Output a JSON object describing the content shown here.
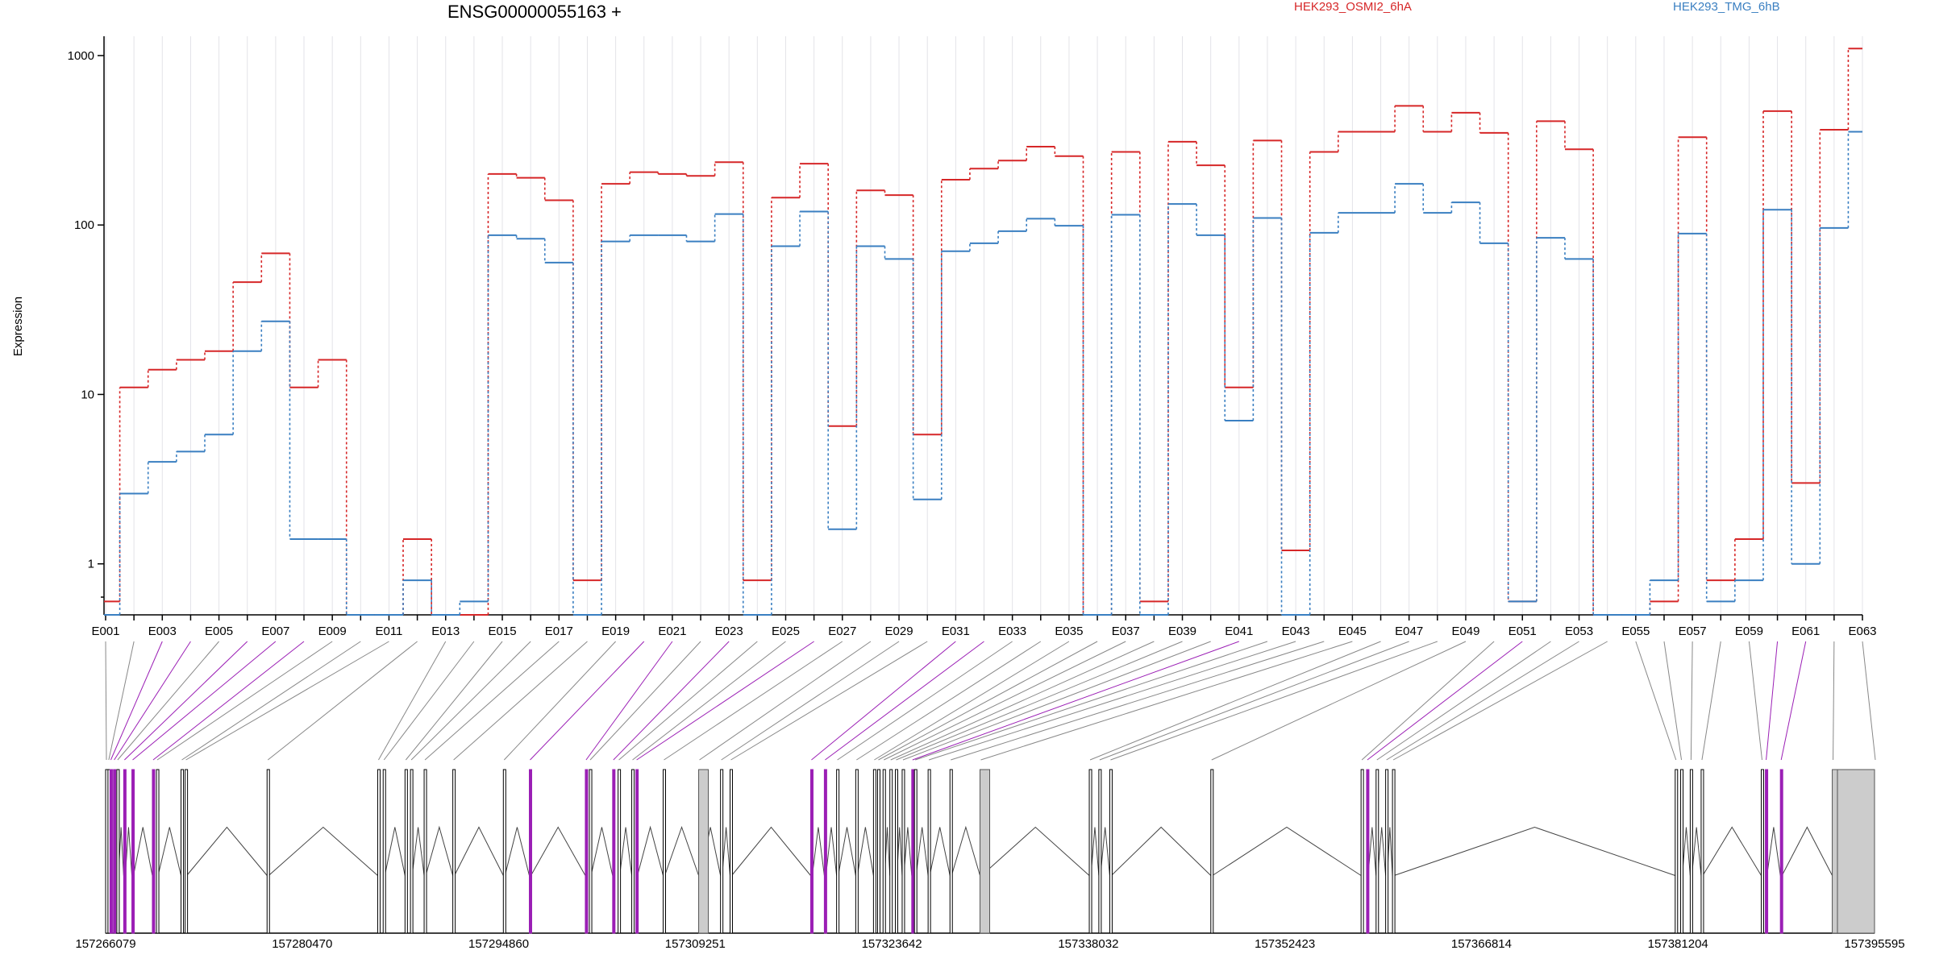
{
  "colors": {
    "series_a": "#d62728",
    "series_b": "#3a7fc1",
    "exon_fill": "#ffffff",
    "exon_highlight": "#9b1fb5",
    "exon_grey": "#cccccc"
  },
  "chart_data": {
    "type": "line",
    "title": "ENSG00000055163 +",
    "ylabel": "Expression",
    "xlabel": "",
    "yscale": "log",
    "ylim": [
      0.5,
      1300
    ],
    "y_ticks": [
      1,
      10,
      100,
      1000
    ],
    "y_tick_labels": [
      "1",
      "10",
      "100",
      "1000"
    ],
    "x": [
      "E001",
      "E002",
      "E003",
      "E004",
      "E005",
      "E006",
      "E007",
      "E008",
      "E009",
      "E010",
      "E011",
      "E012",
      "E013",
      "E014",
      "E015",
      "E016",
      "E017",
      "E018",
      "E019",
      "E020",
      "E021",
      "E022",
      "E023",
      "E024",
      "E025",
      "E026",
      "E027",
      "E028",
      "E029",
      "E030",
      "E031",
      "E032",
      "E033",
      "E034",
      "E035",
      "E036",
      "E037",
      "E038",
      "E039",
      "E040",
      "E041",
      "E042",
      "E043",
      "E044",
      "E045",
      "E046",
      "E047",
      "E048",
      "E049",
      "E050",
      "E051",
      "E052",
      "E053",
      "E054",
      "E055",
      "E056",
      "E057",
      "E058",
      "E059",
      "E060",
      "E061",
      "E062",
      "E063"
    ],
    "x_tick_labels": [
      "E001",
      "E003",
      "E005",
      "E007",
      "E009",
      "E011",
      "E013",
      "E015",
      "E017",
      "E019",
      "E021",
      "E023",
      "E025",
      "E027",
      "E029",
      "E031",
      "E033",
      "E035",
      "E037",
      "E039",
      "E041",
      "E043",
      "E045",
      "E047",
      "E049",
      "E051",
      "E053",
      "E055",
      "E057",
      "E059",
      "E061",
      "E063"
    ],
    "series": [
      {
        "name": "HEK293_OSMI2_6hA",
        "values": [
          0.6,
          11,
          14,
          16,
          18,
          46,
          68,
          11,
          16,
          0.5,
          0.5,
          1.4,
          0.5,
          0.5,
          200,
          190,
          140,
          0.8,
          175,
          205,
          200,
          195,
          235,
          0.8,
          145,
          230,
          6.5,
          160,
          150,
          5.8,
          185,
          215,
          240,
          290,
          255,
          0.5,
          270,
          0.6,
          310,
          225,
          11,
          315,
          1.2,
          270,
          355,
          355,
          505,
          355,
          460,
          350,
          0.6,
          410,
          280,
          0.5,
          0.5,
          0.6,
          330,
          0.8,
          1.4,
          470,
          3.0,
          365,
          1100
        ]
      },
      {
        "name": "HEK293_TMG_6hB",
        "values": [
          0.5,
          2.6,
          4.0,
          4.6,
          5.8,
          18,
          27,
          1.4,
          1.4,
          0.5,
          0.5,
          0.8,
          0.5,
          0.6,
          87,
          83,
          60,
          0.5,
          80,
          87,
          87,
          80,
          116,
          0.5,
          75,
          120,
          1.6,
          75,
          63,
          2.4,
          70,
          78,
          92,
          109,
          99,
          0.5,
          115,
          0.5,
          133,
          87,
          7.0,
          110,
          0.5,
          90,
          118,
          118,
          175,
          118,
          136,
          78,
          0.6,
          84,
          63,
          0.5,
          0.5,
          0.8,
          89,
          0.6,
          0.8,
          123,
          1.0,
          96,
          355
        ]
      }
    ],
    "genomic_axis": {
      "start": 157266079,
      "end": 157395595,
      "tick_labels": [
        "157266079",
        "157280470",
        "157294860",
        "157309251",
        "157323642",
        "157338032",
        "157352423",
        "157366814",
        "157381204",
        "157395595"
      ]
    },
    "exon_positions": [
      157266079,
      157266250,
      157266400,
      157266650,
      157266900,
      157267400,
      157268000,
      157269500,
      157269800,
      157271600,
      157271900,
      157277900,
      157286000,
      157286400,
      157288000,
      157288400,
      157289400,
      157291500,
      157295200,
      157297100,
      157301200,
      157301500,
      157303200,
      157303600,
      157304600,
      157304900,
      157306900,
      157309500,
      157311100,
      157311800,
      157317700,
      157318700,
      157319600,
      157321000,
      157322300,
      157322600,
      157323000,
      157323500,
      157323900,
      157324400,
      157325100,
      157325300,
      157326300,
      157327900,
      157330100,
      157338100,
      157338800,
      157339600,
      157347000,
      157358000,
      157358400,
      157359100,
      157359800,
      157360300,
      157381000,
      157381400,
      157382100,
      157382900,
      157387300,
      157387600,
      157388700,
      157392500,
      157395595
    ],
    "highlight_exons": [
      2,
      3,
      5,
      6,
      7,
      19,
      20,
      22,
      25,
      30,
      31,
      40,
      50,
      59,
      60
    ],
    "grey_exons": [
      27,
      44,
      61
    ]
  },
  "legend": {
    "series_a": "HEK293_OSMI2_6hA",
    "series_b": "HEK293_TMG_6hB"
  }
}
